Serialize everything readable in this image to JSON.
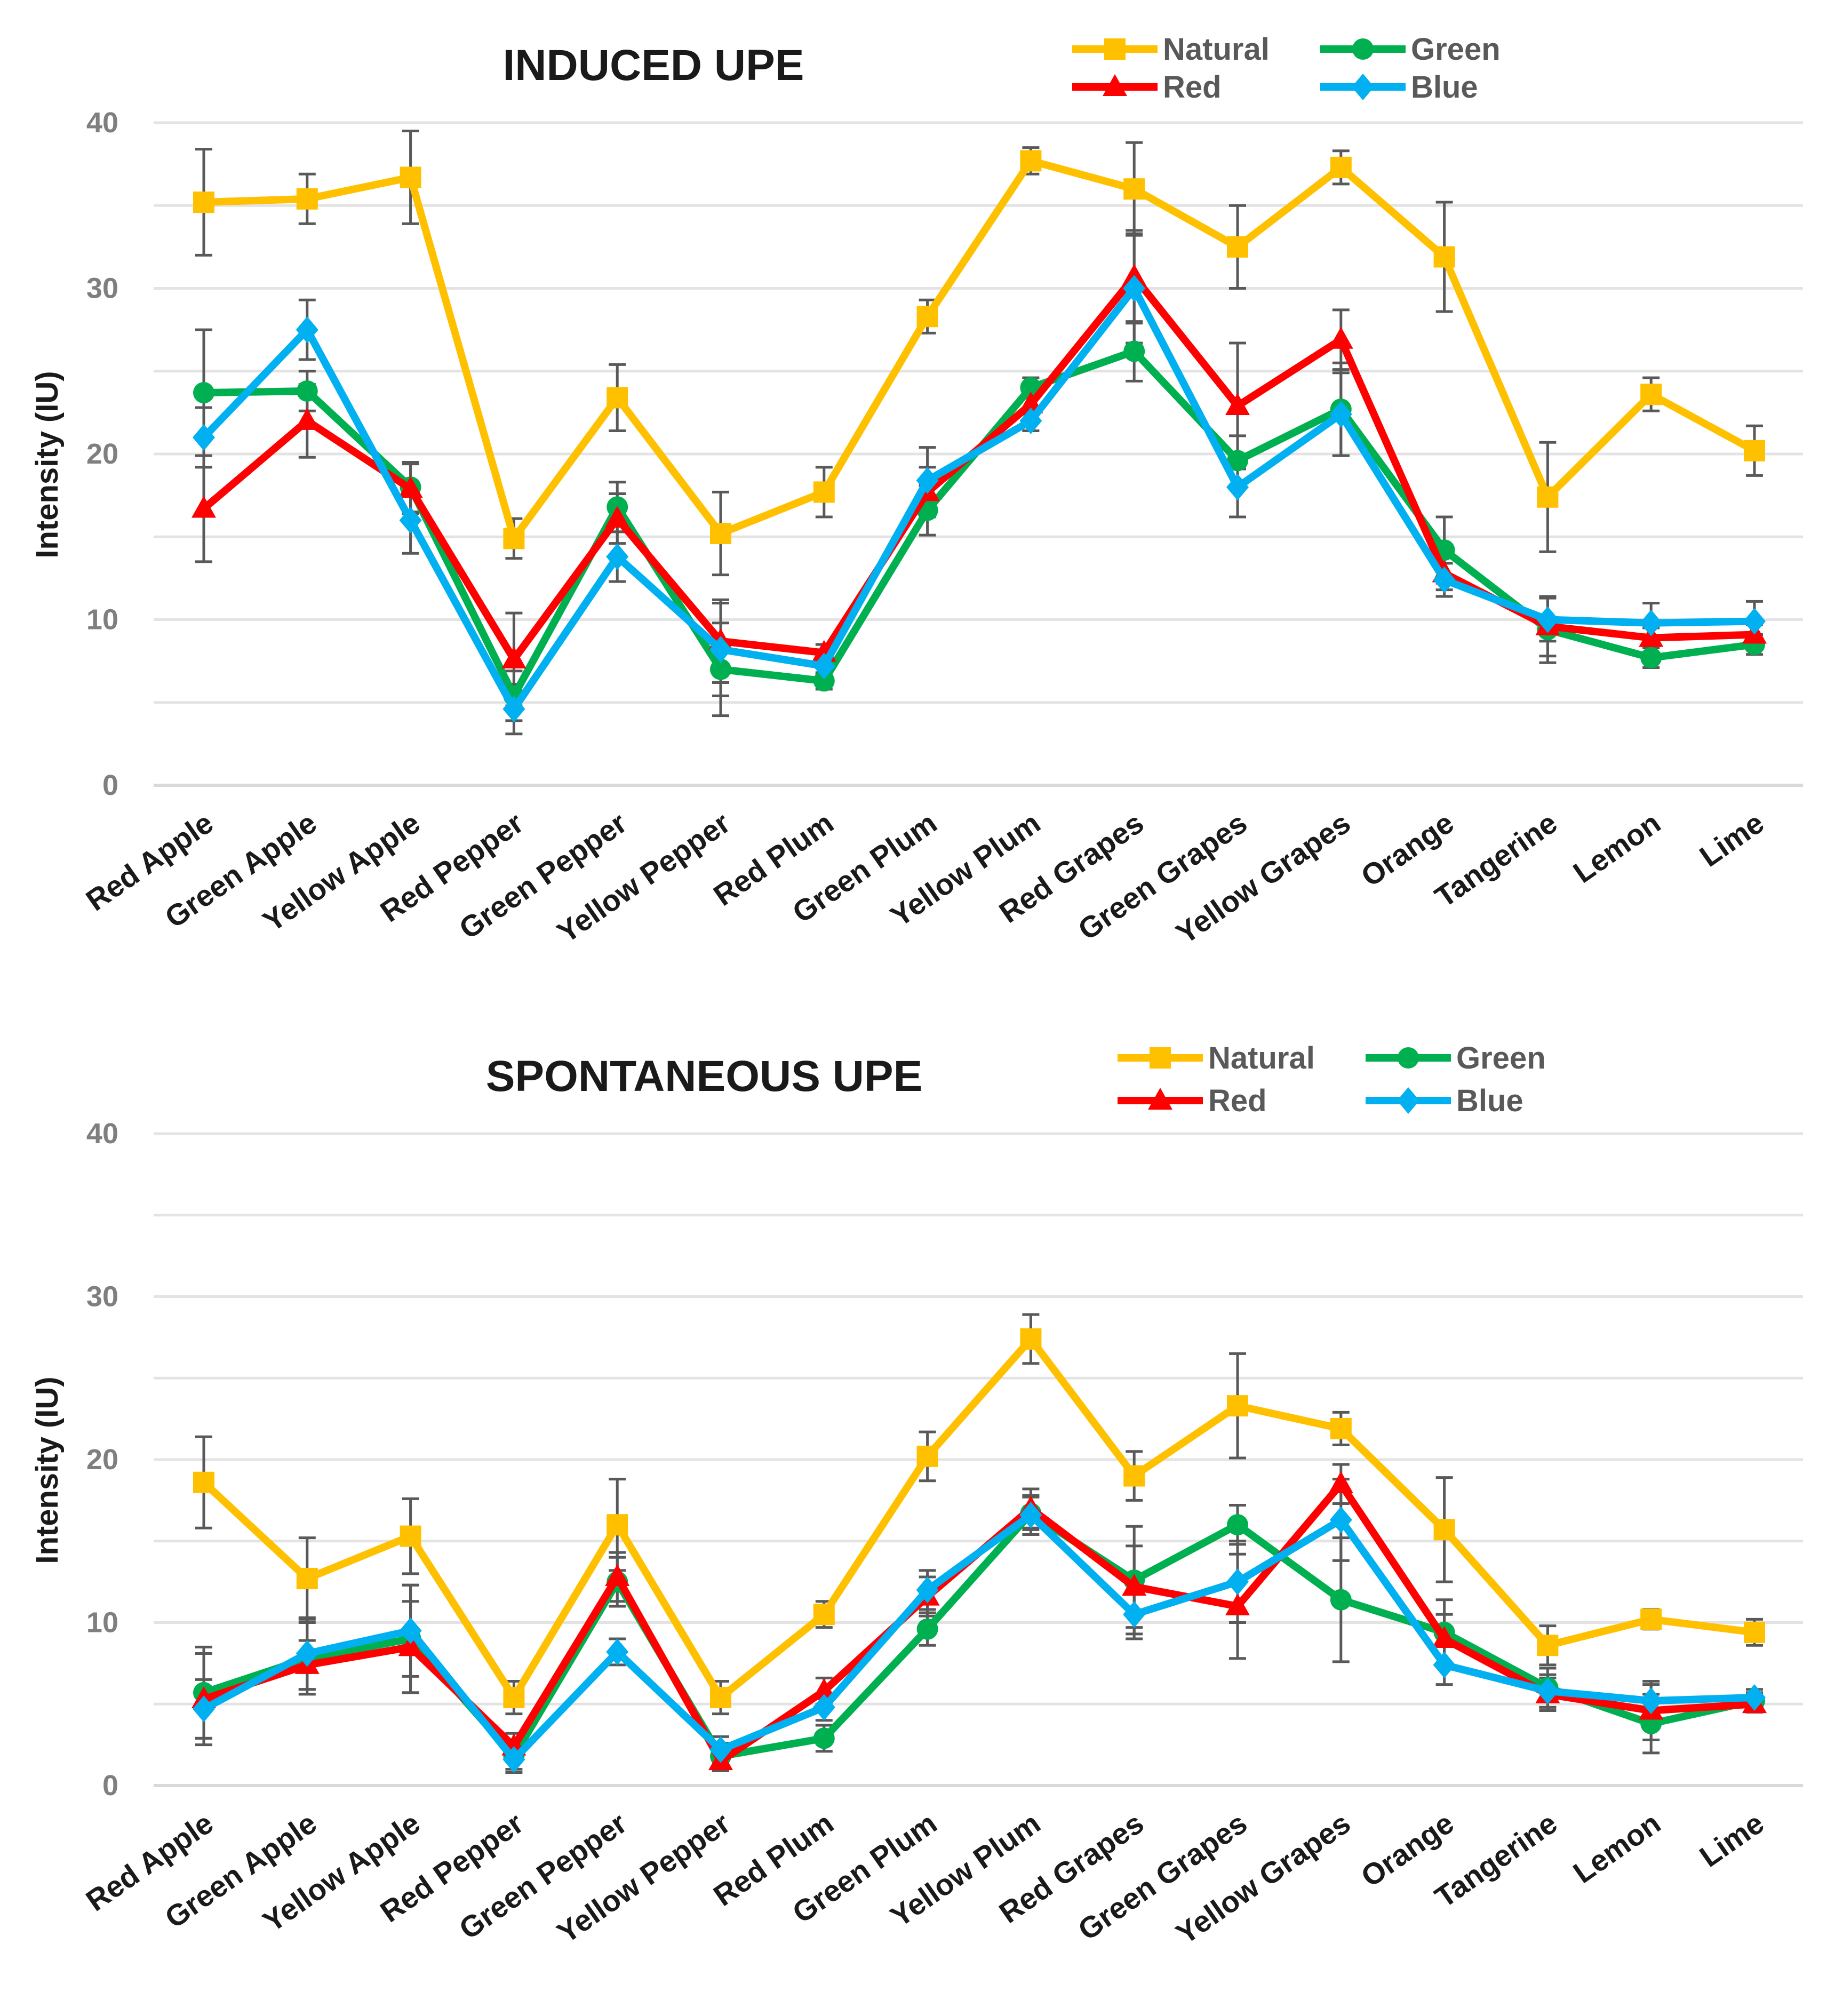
{
  "colors": {
    "Natural": "#FFC000",
    "Red": "#FF0000",
    "Green": "#00B050",
    "Blue": "#00B0F0"
  },
  "chart_data": [
    {
      "type": "line",
      "title": "INDUCED UPE",
      "ylabel": "Intensity (IU)",
      "xlabel": "",
      "ylim": [
        0,
        40
      ],
      "yticks": [
        0,
        10,
        20,
        30,
        40
      ],
      "grid": true,
      "legend": "top-right",
      "categories": [
        "Red Apple",
        "Green Apple",
        "Yellow Apple",
        "Red Pepper",
        "Green Pepper",
        "Yellow Pepper",
        "Red Plum",
        "Green Plum",
        "Yellow Plum",
        "Red Grapes",
        "Green Grapes",
        "Yellow Grapes",
        "Orange",
        "Tangerine",
        "Lemon",
        "Lime"
      ],
      "series": [
        {
          "name": "Natural",
          "color": "#FFC000",
          "marker": "square",
          "values": [
            35.2,
            35.4,
            36.7,
            14.9,
            23.4,
            15.2,
            17.7,
            28.3,
            37.7,
            36.0,
            32.5,
            37.3,
            31.9,
            17.4,
            23.6,
            20.2
          ],
          "errors": [
            3.2,
            1.5,
            2.8,
            1.2,
            2.0,
            2.5,
            1.5,
            1.0,
            0.8,
            2.8,
            2.5,
            1.0,
            3.3,
            3.3,
            1.0,
            1.5
          ]
        },
        {
          "name": "Green",
          "color": "#00B050",
          "marker": "circle",
          "values": [
            23.7,
            23.8,
            18.0,
            5.4,
            16.8,
            7.0,
            6.3,
            16.6,
            24.0,
            26.2,
            19.6,
            22.7,
            14.2,
            9.4,
            7.7,
            8.5
          ],
          "errors": [
            3.8,
            1.2,
            1.5,
            1.5,
            1.5,
            2.8,
            0.5,
            1.5,
            0.6,
            1.8,
            1.5,
            2.8,
            2.0,
            2.0,
            0.6,
            0.6
          ]
        },
        {
          "name": "Red",
          "color": "#FF0000",
          "marker": "triangle",
          "values": [
            16.7,
            22.0,
            17.9,
            7.6,
            16.1,
            8.7,
            8.0,
            17.7,
            23.0,
            30.7,
            22.9,
            26.9,
            12.8,
            9.6,
            8.9,
            9.1
          ],
          "errors": [
            3.2,
            2.2,
            1.5,
            2.8,
            1.5,
            2.5,
            0.5,
            1.5,
            0.6,
            2.8,
            3.8,
            1.8,
            1.0,
            1.8,
            0.6,
            0.6
          ]
        },
        {
          "name": "Blue",
          "color": "#00B0F0",
          "marker": "diamond",
          "values": [
            21.0,
            27.5,
            16.0,
            4.6,
            13.8,
            8.2,
            7.2,
            18.4,
            22.0,
            30.0,
            18.0,
            22.4,
            12.4,
            10.0,
            9.8,
            9.9
          ],
          "errors": [
            1.8,
            1.8,
            2.0,
            1.5,
            1.5,
            2.8,
            0.5,
            2.0,
            0.6,
            3.3,
            1.8,
            2.5,
            1.0,
            1.3,
            1.2,
            1.2
          ]
        }
      ]
    },
    {
      "type": "line",
      "title": "SPONTANEOUS UPE",
      "ylabel": "Intensity (IU)",
      "xlabel": "",
      "ylim": [
        0,
        40
      ],
      "yticks": [
        0,
        10,
        20,
        30,
        40
      ],
      "grid": true,
      "legend": "top-right",
      "categories": [
        "Red Apple",
        "Green Apple",
        "Yellow Apple",
        "Red Pepper",
        "Green Pepper",
        "Yellow Pepper",
        "Red Plum",
        "Green Plum",
        "Yellow Plum",
        "Red Grapes",
        "Green Grapes",
        "Yellow Grapes",
        "Orange",
        "Tangerine",
        "Lemon",
        "Lime"
      ],
      "series": [
        {
          "name": "Natural",
          "color": "#FFC000",
          "marker": "square",
          "values": [
            18.6,
            12.7,
            15.3,
            5.4,
            16.0,
            5.4,
            10.5,
            20.2,
            27.4,
            19.0,
            23.3,
            21.9,
            15.7,
            8.6,
            10.2,
            9.4
          ],
          "errors": [
            2.8,
            2.5,
            2.3,
            1.0,
            2.8,
            1.0,
            0.8,
            1.5,
            1.5,
            1.5,
            3.2,
            1.0,
            3.2,
            1.2,
            0.6,
            0.8
          ]
        },
        {
          "name": "Green",
          "color": "#00B050",
          "marker": "circle",
          "values": [
            5.7,
            7.8,
            9.0,
            1.8,
            12.5,
            1.8,
            2.9,
            9.6,
            16.7,
            12.6,
            16.0,
            11.4,
            9.4,
            6.0,
            3.8,
            5.2
          ],
          "errors": [
            2.8,
            2.2,
            3.3,
            0.8,
            1.5,
            0.8,
            0.8,
            1.0,
            1.0,
            3.3,
            1.2,
            3.8,
            2.0,
            1.2,
            1.8,
            0.5
          ]
        },
        {
          "name": "Red",
          "color": "#FF0000",
          "marker": "triangle",
          "values": [
            5.3,
            7.4,
            8.5,
            2.4,
            12.8,
            1.5,
            5.8,
            11.6,
            17.0,
            12.2,
            11.0,
            18.5,
            9.0,
            5.6,
            4.6,
            5.0
          ],
          "errors": [
            2.8,
            1.5,
            2.8,
            0.8,
            1.5,
            0.6,
            0.8,
            1.2,
            1.2,
            2.5,
            3.2,
            1.2,
            1.5,
            1.0,
            1.8,
            0.5
          ]
        },
        {
          "name": "Blue",
          "color": "#00B0F0",
          "marker": "diamond",
          "values": [
            4.7,
            8.1,
            9.5,
            1.6,
            8.2,
            2.2,
            4.8,
            12.0,
            16.6,
            10.5,
            12.5,
            16.3,
            7.4,
            5.8,
            5.2,
            5.4
          ],
          "errors": [
            1.8,
            2.2,
            2.8,
            0.8,
            0.8,
            0.8,
            0.8,
            1.2,
            1.2,
            1.5,
            2.5,
            2.5,
            1.2,
            1.0,
            1.0,
            0.5
          ]
        }
      ]
    }
  ]
}
